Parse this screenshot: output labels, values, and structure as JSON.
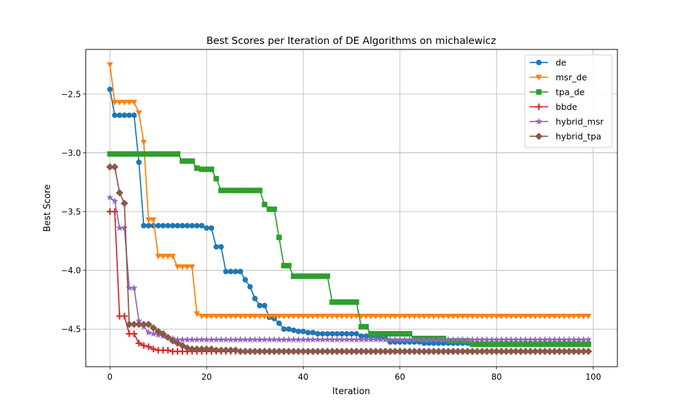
{
  "chart_data": {
    "type": "line",
    "title": "Best Scores per Iteration of DE Algorithms on michalewicz",
    "xlabel": "Iteration",
    "ylabel": "Best Score",
    "xlim": [
      -5,
      105
    ],
    "ylim": [
      -4.82,
      -2.12
    ],
    "xticks": [
      0,
      20,
      40,
      60,
      80,
      100
    ],
    "yticks": [
      -2.5,
      -3.0,
      -3.5,
      -4.0,
      -4.5
    ],
    "ytick_labels": [
      "−2.5",
      "−3.0",
      "−3.5",
      "−4.0",
      "−4.5"
    ],
    "grid": true,
    "legend_position": "upper right",
    "series": [
      {
        "name": "de",
        "color": "#1f77b4",
        "marker": "circle",
        "steps": [
          [
            0,
            -2.46
          ],
          [
            1,
            -2.68
          ],
          [
            5,
            -2.68
          ],
          [
            6,
            -3.08
          ],
          [
            7,
            -3.62
          ],
          [
            19,
            -3.62
          ],
          [
            20,
            -3.64
          ],
          [
            21,
            -3.64
          ],
          [
            22,
            -3.8
          ],
          [
            23,
            -3.8
          ],
          [
            24,
            -4.01
          ],
          [
            27,
            -4.01
          ],
          [
            28,
            -4.08
          ],
          [
            29,
            -4.14
          ],
          [
            30,
            -4.24
          ],
          [
            31,
            -4.3
          ],
          [
            32,
            -4.3
          ],
          [
            33,
            -4.4
          ],
          [
            34,
            -4.41
          ],
          [
            35,
            -4.45
          ],
          [
            36,
            -4.5
          ],
          [
            38,
            -4.51
          ],
          [
            39,
            -4.52
          ],
          [
            41,
            -4.53
          ],
          [
            43,
            -4.54
          ],
          [
            52,
            -4.56
          ],
          [
            56,
            -4.58
          ],
          [
            58,
            -4.61
          ],
          [
            65,
            -4.62
          ],
          [
            99,
            -4.62
          ]
        ]
      },
      {
        "name": "msr_de",
        "color": "#ff7f0e",
        "marker": "triangle-down",
        "steps": [
          [
            0,
            -2.25
          ],
          [
            1,
            -2.57
          ],
          [
            5,
            -2.57
          ],
          [
            6,
            -2.66
          ],
          [
            7,
            -2.91
          ],
          [
            8,
            -3.57
          ],
          [
            9,
            -3.57
          ],
          [
            10,
            -3.88
          ],
          [
            13,
            -3.88
          ],
          [
            14,
            -3.97
          ],
          [
            17,
            -3.97
          ],
          [
            18,
            -4.37
          ],
          [
            19,
            -4.39
          ],
          [
            99,
            -4.39
          ]
        ]
      },
      {
        "name": "tpa_de",
        "color": "#2ca02c",
        "marker": "square",
        "steps": [
          [
            0,
            -3.01
          ],
          [
            14,
            -3.01
          ],
          [
            15,
            -3.07
          ],
          [
            17,
            -3.07
          ],
          [
            18,
            -3.13
          ],
          [
            19,
            -3.14
          ],
          [
            21,
            -3.14
          ],
          [
            22,
            -3.22
          ],
          [
            23,
            -3.32
          ],
          [
            31,
            -3.32
          ],
          [
            32,
            -3.44
          ],
          [
            33,
            -3.48
          ],
          [
            34,
            -3.48
          ],
          [
            35,
            -3.72
          ],
          [
            36,
            -3.96
          ],
          [
            37,
            -3.96
          ],
          [
            38,
            -4.05
          ],
          [
            45,
            -4.05
          ],
          [
            46,
            -4.27
          ],
          [
            51,
            -4.27
          ],
          [
            52,
            -4.48
          ],
          [
            53,
            -4.48
          ],
          [
            54,
            -4.54
          ],
          [
            62,
            -4.54
          ],
          [
            63,
            -4.58
          ],
          [
            69,
            -4.58
          ],
          [
            70,
            -4.6
          ],
          [
            74,
            -4.6
          ],
          [
            75,
            -4.63
          ],
          [
            99,
            -4.63
          ]
        ]
      },
      {
        "name": "bbde",
        "color": "#d62728",
        "marker": "plus",
        "steps": [
          [
            0,
            -3.5
          ],
          [
            1,
            -3.5
          ],
          [
            2,
            -4.39
          ],
          [
            3,
            -4.39
          ],
          [
            4,
            -4.54
          ],
          [
            5,
            -4.54
          ],
          [
            6,
            -4.62
          ],
          [
            7,
            -4.64
          ],
          [
            8,
            -4.65
          ],
          [
            9,
            -4.67
          ],
          [
            10,
            -4.68
          ],
          [
            11,
            -4.68
          ],
          [
            13,
            -4.69
          ],
          [
            99,
            -4.69
          ]
        ]
      },
      {
        "name": "hybrid_msr",
        "color": "#9467bd",
        "marker": "star",
        "steps": [
          [
            0,
            -3.38
          ],
          [
            1,
            -3.41
          ],
          [
            2,
            -3.64
          ],
          [
            3,
            -3.64
          ],
          [
            4,
            -4.15
          ],
          [
            5,
            -4.15
          ],
          [
            6,
            -4.43
          ],
          [
            7,
            -4.48
          ],
          [
            8,
            -4.53
          ],
          [
            9,
            -4.54
          ],
          [
            10,
            -4.55
          ],
          [
            11,
            -4.56
          ],
          [
            12,
            -4.57
          ],
          [
            13,
            -4.58
          ],
          [
            14,
            -4.59
          ],
          [
            99,
            -4.59
          ]
        ]
      },
      {
        "name": "hybrid_tpa",
        "color": "#8c564b",
        "marker": "diamond",
        "steps": [
          [
            0,
            -3.12
          ],
          [
            1,
            -3.12
          ],
          [
            2,
            -3.34
          ],
          [
            3,
            -3.43
          ],
          [
            4,
            -4.46
          ],
          [
            8,
            -4.46
          ],
          [
            9,
            -4.49
          ],
          [
            10,
            -4.52
          ],
          [
            11,
            -4.54
          ],
          [
            12,
            -4.57
          ],
          [
            13,
            -4.6
          ],
          [
            14,
            -4.62
          ],
          [
            15,
            -4.64
          ],
          [
            16,
            -4.66
          ],
          [
            17,
            -4.67
          ],
          [
            21,
            -4.67
          ],
          [
            22,
            -4.68
          ],
          [
            26,
            -4.68
          ],
          [
            27,
            -4.69
          ],
          [
            99,
            -4.69
          ]
        ]
      }
    ]
  }
}
